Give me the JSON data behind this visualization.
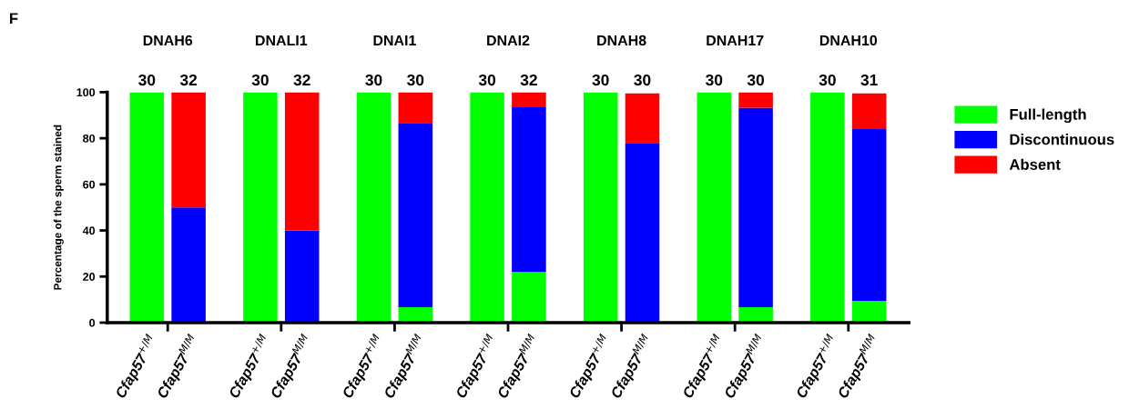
{
  "chart_data": {
    "type": "bar",
    "stacked": true,
    "categories": [
      "Cfap57$^{+/M}$",
      "Cfap57$^{M/M}$",
      "Cfap57$^{+/M}$",
      "Cfap57$^{M/M}$",
      "Cfap57$^{+/M}$",
      "Cfap57$^{M/M}$",
      "Cfap57$^{+/M}$",
      "Cfap57$^{M/M}$",
      "Cfap57$^{+/M}$",
      "Cfap57$^{M/M}$",
      "Cfap57$^{+/M}$",
      "Cfap57$^{M/M}$",
      "Cfap57$^{+/M}$",
      "Cfap57$^{M/M}$"
    ],
    "series": [
      {
        "name": "Full-length",
        "color": "#00ff00",
        "values": [
          100,
          null,
          100,
          null,
          100,
          6.7,
          100,
          22,
          100,
          null,
          100,
          6.7,
          100,
          9.5
        ]
      },
      {
        "name": "Discontinuous",
        "color": "#0000ff",
        "values": [
          null,
          50,
          null,
          40,
          null,
          80,
          null,
          71.5,
          null,
          78,
          null,
          86.6,
          null,
          74.5
        ]
      },
      {
        "name": "Absent",
        "color": "#ff0000",
        "values": [
          null,
          50,
          null,
          60,
          null,
          13.3,
          null,
          6.5,
          null,
          21.5,
          null,
          6.7,
          null,
          15.5
        ]
      }
    ],
    "ylabel": "Percentage of the sperm stained",
    "ylim": [
      0,
      100
    ],
    "yticks": [
      0,
      20,
      40,
      60,
      80,
      100
    ],
    "annotations": [
      "F",
      "DNAH6",
      "DNALI1",
      "DNAI1",
      "DNAI2",
      "DNAH8",
      "DNAH17",
      "DNAH10",
      "30",
      "32",
      "30",
      "32",
      "30",
      "30",
      "30",
      "32",
      "30",
      "30",
      "30",
      "30",
      "30",
      "31"
    ],
    "legend": "right",
    "grid": false
  }
}
